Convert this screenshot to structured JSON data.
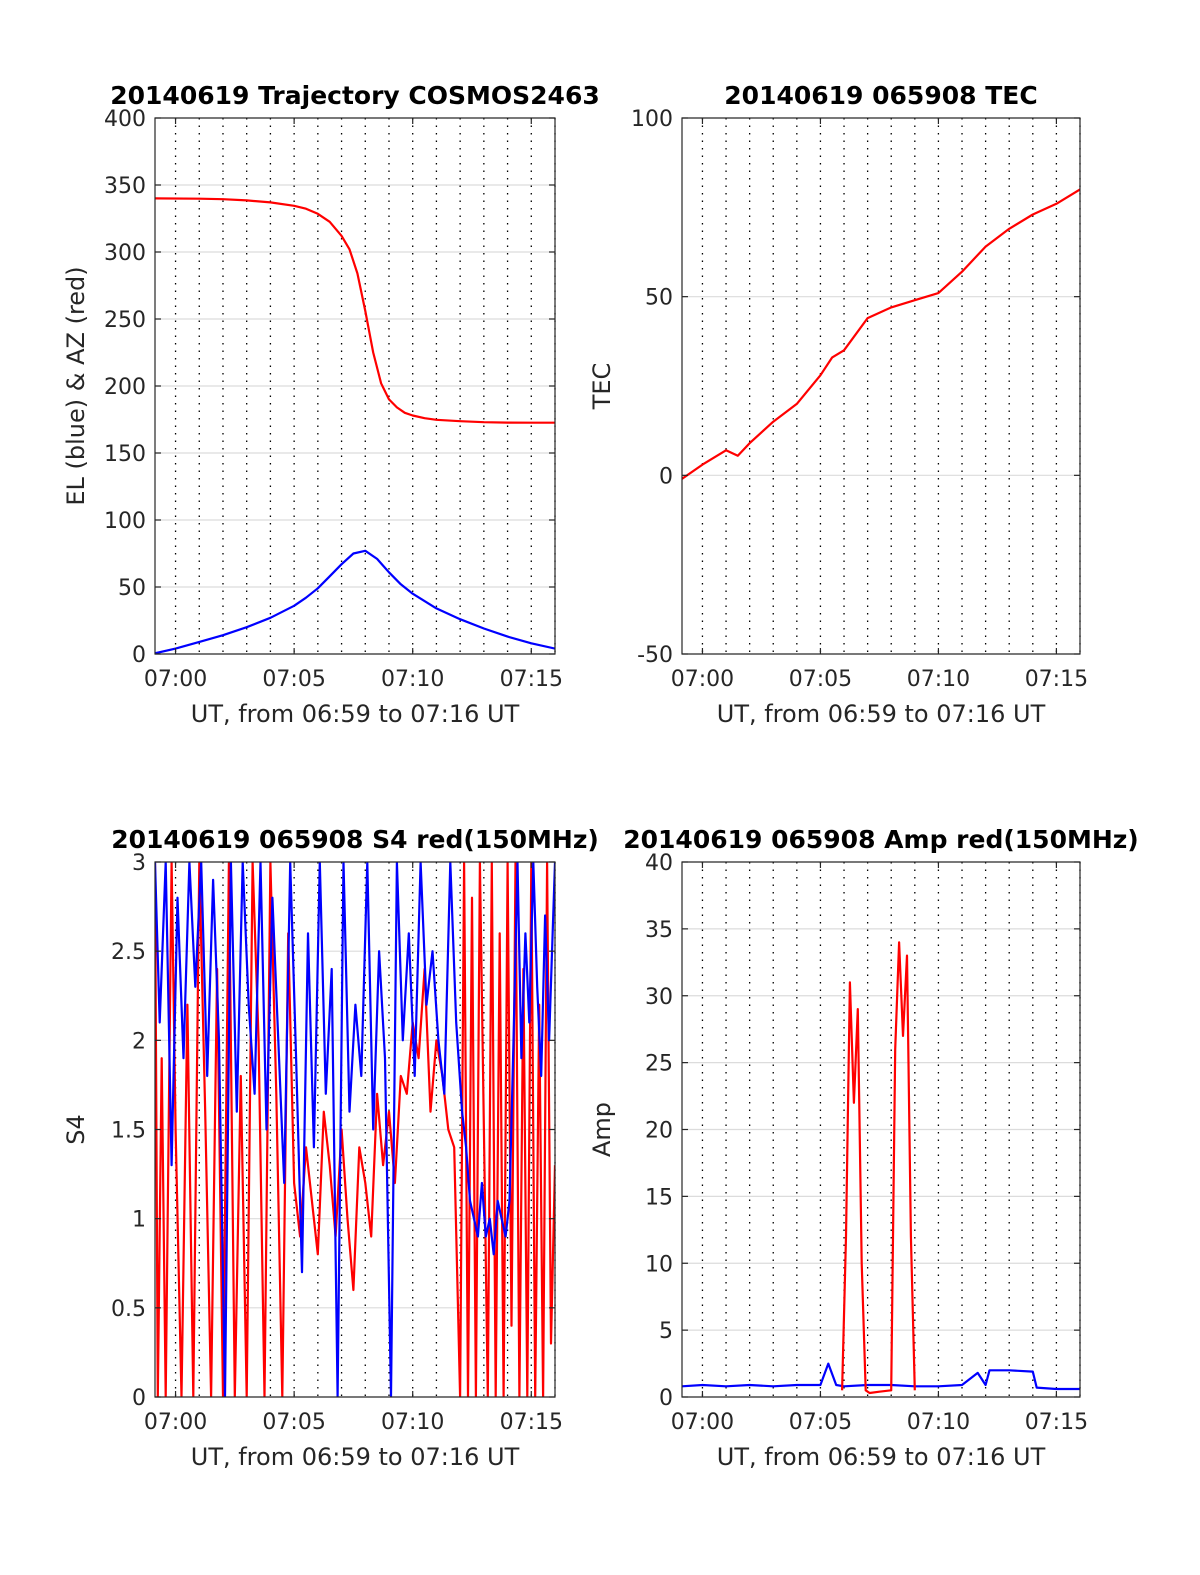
{
  "figure": {
    "colors": {
      "red": "#ff0000",
      "blue": "#0000ff",
      "grid_major": "#dcdcdc",
      "grid_minor": "#000000",
      "axis": "#262626"
    }
  },
  "chart_data": [
    {
      "id": "trajectory",
      "type": "line",
      "title": "20140619 Trajectory COSMOS2463",
      "xlabel": "UT, from 06:59 to 07:16 UT",
      "ylabel": "EL (blue) & AZ (red)",
      "xlim": [
        "06:59:08",
        "07:16:00"
      ],
      "ylim": [
        0,
        400
      ],
      "xticks": [
        "07:00",
        "07:05",
        "07:10",
        "07:15"
      ],
      "yticks": [
        "0",
        "50",
        "100",
        "150",
        "200",
        "250",
        "300",
        "350",
        "400"
      ],
      "grid": true,
      "series": [
        {
          "color": "#ff0000",
          "x": [
            "06:59:08",
            "07:01:00",
            "07:02:00",
            "07:03:00",
            "07:04:00",
            "07:05:00",
            "07:05:30",
            "07:06:00",
            "07:06:30",
            "07:07:00",
            "07:07:20",
            "07:07:40",
            "07:08:00",
            "07:08:20",
            "07:08:40",
            "07:09:00",
            "07:09:20",
            "07:09:40",
            "07:10:00",
            "07:10:30",
            "07:11:00",
            "07:12:00",
            "07:13:00",
            "07:14:00",
            "07:15:00",
            "07:16:00"
          ],
          "y": [
            340,
            339.8,
            339.4,
            338.5,
            337,
            334.5,
            332.3,
            328.5,
            322.5,
            312,
            302,
            284,
            256,
            225,
            202,
            190,
            184,
            180,
            178,
            176,
            174.8,
            173.7,
            173,
            172.7,
            172.6,
            172.6
          ]
        },
        {
          "color": "#0000ff",
          "x": [
            "06:59:08",
            "07:00:00",
            "07:01:00",
            "07:02:00",
            "07:03:00",
            "07:04:00",
            "07:05:00",
            "07:05:30",
            "07:06:00",
            "07:06:30",
            "07:07:00",
            "07:07:30",
            "07:08:00",
            "07:08:30",
            "07:09:00",
            "07:09:30",
            "07:10:00",
            "07:11:00",
            "07:12:00",
            "07:13:00",
            "07:14:00",
            "07:15:00",
            "07:16:00"
          ],
          "y": [
            0.5,
            4,
            9,
            14,
            20,
            27,
            36,
            42,
            49,
            58,
            67,
            75,
            77,
            71,
            61,
            52,
            45,
            34,
            26,
            19,
            13,
            8,
            4
          ]
        }
      ]
    },
    {
      "id": "tec",
      "type": "line",
      "title": "20140619 065908 TEC",
      "xlabel": "UT, from 06:59 to 07:16 UT",
      "ylabel": "TEC",
      "xlim": [
        "06:59:08",
        "07:16:00"
      ],
      "ylim": [
        -50,
        100
      ],
      "xticks": [
        "07:00",
        "07:05",
        "07:10",
        "07:15"
      ],
      "yticks": [
        "-50",
        "0",
        "50",
        "100"
      ],
      "grid": true,
      "series": [
        {
          "color": "#ff0000",
          "x": [
            "06:59:08",
            "07:00:00",
            "07:01:00",
            "07:01:30",
            "07:02:00",
            "07:03:00",
            "07:04:00",
            "07:05:00",
            "07:05:30",
            "07:06:00",
            "07:07:00",
            "07:08:00",
            "07:09:00",
            "07:10:00",
            "07:11:00",
            "07:12:00",
            "07:13:00",
            "07:14:00",
            "07:15:00",
            "07:16:00"
          ],
          "y": [
            -1,
            3,
            7,
            5.5,
            9,
            15,
            20,
            28,
            33,
            35,
            44,
            47,
            49,
            51,
            57,
            64,
            69,
            73,
            76,
            80
          ]
        }
      ]
    },
    {
      "id": "s4",
      "type": "line",
      "title": "20140619 065908 S4 red(150MHz)",
      "xlabel": "UT, from 06:59 to 07:16 UT",
      "ylabel": "S4",
      "xlim": [
        "06:59:08",
        "07:16:00"
      ],
      "ylim": [
        0,
        3
      ],
      "xticks": [
        "07:00",
        "07:05",
        "07:10",
        "07:15"
      ],
      "yticks": [
        "0",
        "0.5",
        "1",
        "1.5",
        "2",
        "2.5",
        "3"
      ],
      "grid": true,
      "series": [
        {
          "color": "#ff0000",
          "x": [
            "06:59:08",
            "06:59:15",
            "06:59:25",
            "06:59:35",
            "06:59:50",
            "07:00:00",
            "07:00:15",
            "07:00:30",
            "07:00:45",
            "07:01:00",
            "07:01:15",
            "07:01:30",
            "07:01:45",
            "07:02:00",
            "07:02:15",
            "07:02:30",
            "07:02:45",
            "07:03:00",
            "07:03:15",
            "07:03:30",
            "07:03:45",
            "07:04:00",
            "07:04:15",
            "07:04:30",
            "07:04:45",
            "07:05:00",
            "07:05:15",
            "07:05:30",
            "07:05:45",
            "07:06:00",
            "07:06:15",
            "07:06:30",
            "07:06:45",
            "07:07:00",
            "07:07:15",
            "07:07:30",
            "07:07:45",
            "07:08:00",
            "07:08:15",
            "07:08:30",
            "07:08:45",
            "07:09:00",
            "07:09:15",
            "07:09:30",
            "07:09:45",
            "07:10:00",
            "07:10:15",
            "07:10:30",
            "07:10:45",
            "07:11:00",
            "07:11:15",
            "07:11:30",
            "07:11:45",
            "07:12:00",
            "07:12:10",
            "07:12:20",
            "07:12:30",
            "07:12:40",
            "07:12:50",
            "07:13:00",
            "07:13:10",
            "07:13:20",
            "07:13:30",
            "07:13:40",
            "07:13:50",
            "07:14:00",
            "07:14:10",
            "07:14:20",
            "07:14:30",
            "07:14:40",
            "07:14:50",
            "07:15:00",
            "07:15:10",
            "07:15:20",
            "07:15:30",
            "07:15:40",
            "07:15:50",
            "07:16:00"
          ],
          "y": [
            3,
            0,
            1.9,
            0,
            3,
            1.5,
            0,
            2.2,
            0,
            3,
            1.6,
            0,
            2.4,
            0,
            3,
            0,
            1.8,
            0,
            3,
            2,
            0,
            3,
            1.7,
            0,
            2.6,
            1.2,
            0.9,
            1.4,
            1.1,
            0.8,
            1.6,
            1.3,
            0.9,
            1.5,
            1.0,
            0.6,
            1.4,
            1.2,
            0.9,
            1.7,
            1.3,
            1.6,
            1.2,
            1.8,
            1.7,
            2.1,
            1.9,
            2.4,
            1.6,
            2.0,
            1.8,
            1.5,
            1.4,
            0,
            3,
            0,
            2.8,
            0,
            3,
            1.5,
            0,
            3,
            0,
            2.6,
            0,
            3,
            0.4,
            3,
            0,
            2.4,
            0,
            3,
            0,
            2.2,
            0,
            3,
            0.3,
            1.3
          ]
        },
        {
          "color": "#0000ff",
          "x": [
            "06:59:08",
            "06:59:20",
            "06:59:35",
            "06:59:50",
            "07:00:05",
            "07:00:20",
            "07:00:35",
            "07:00:50",
            "07:01:05",
            "07:01:20",
            "07:01:35",
            "07:01:50",
            "07:02:05",
            "07:02:20",
            "07:02:35",
            "07:02:50",
            "07:03:05",
            "07:03:20",
            "07:03:35",
            "07:03:50",
            "07:04:05",
            "07:04:20",
            "07:04:35",
            "07:04:50",
            "07:05:05",
            "07:05:20",
            "07:05:35",
            "07:05:50",
            "07:06:05",
            "07:06:20",
            "07:06:35",
            "07:06:50",
            "07:07:05",
            "07:07:20",
            "07:07:35",
            "07:07:50",
            "07:08:05",
            "07:08:20",
            "07:08:35",
            "07:08:50",
            "07:09:05",
            "07:09:20",
            "07:09:35",
            "07:09:50",
            "07:10:05",
            "07:10:20",
            "07:10:35",
            "07:10:50",
            "07:11:05",
            "07:11:20",
            "07:11:35",
            "07:11:50",
            "07:12:05",
            "07:12:15",
            "07:12:25",
            "07:12:35",
            "07:12:45",
            "07:12:55",
            "07:13:05",
            "07:13:15",
            "07:13:25",
            "07:13:35",
            "07:13:45",
            "07:13:55",
            "07:14:05",
            "07:14:15",
            "07:14:25",
            "07:14:35",
            "07:14:45",
            "07:14:55",
            "07:15:05",
            "07:15:15",
            "07:15:25",
            "07:15:35",
            "07:15:45",
            "07:16:00"
          ],
          "y": [
            3,
            2.1,
            3,
            1.3,
            2.8,
            1.9,
            3,
            2.3,
            3,
            1.8,
            2.9,
            2.0,
            0,
            3,
            1.6,
            3,
            2.2,
            1.7,
            3,
            1.5,
            2.8,
            2.0,
            1.2,
            3,
            1.9,
            0.7,
            2.6,
            1.4,
            3,
            1.7,
            2.4,
            0,
            3,
            1.6,
            2.2,
            1.8,
            3,
            1.5,
            2.5,
            1.9,
            0,
            3,
            2.0,
            2.6,
            1.8,
            3,
            2.2,
            2.5,
            2.0,
            1.7,
            3,
            2.1,
            1.6,
            1.4,
            1.1,
            1.0,
            0.9,
            1.2,
            0.9,
            1.0,
            0.8,
            1.1,
            1.0,
            0.9,
            1.1,
            2.0,
            3,
            1.9,
            2.6,
            2.1,
            3,
            2.3,
            1.8,
            2.7,
            2.0,
            3
          ]
        }
      ]
    },
    {
      "id": "amp",
      "type": "line",
      "title": "20140619 065908 Amp red(150MHz)",
      "xlabel": "UT, from 06:59 to 07:16 UT",
      "ylabel": "Amp",
      "xlim": [
        "06:59:08",
        "07:16:00"
      ],
      "ylim": [
        0,
        40
      ],
      "xticks": [
        "07:00",
        "07:05",
        "07:10",
        "07:15"
      ],
      "yticks": [
        "0",
        "5",
        "10",
        "15",
        "20",
        "25",
        "30",
        "35",
        "40"
      ],
      "grid": true,
      "series": [
        {
          "color": "#0000ff",
          "x": [
            "06:59:08",
            "07:00:00",
            "07:01:00",
            "07:02:00",
            "07:03:00",
            "07:04:00",
            "07:05:00",
            "07:05:20",
            "07:05:40",
            "07:06:00",
            "07:07:00",
            "07:08:00",
            "07:09:00",
            "07:10:00",
            "07:11:00",
            "07:11:40",
            "07:12:00",
            "07:12:10",
            "07:13:00",
            "07:14:00",
            "07:14:10",
            "07:15:00",
            "07:16:00"
          ],
          "y": [
            0.8,
            0.9,
            0.8,
            0.9,
            0.8,
            0.9,
            0.9,
            2.5,
            0.9,
            0.8,
            0.9,
            0.9,
            0.8,
            0.8,
            0.9,
            1.8,
            0.9,
            2.0,
            2.0,
            1.9,
            0.7,
            0.6,
            0.6
          ]
        },
        {
          "color": "#ff0000",
          "x": [
            "07:05:55",
            "07:06:05",
            "07:06:15",
            "07:06:25",
            "07:06:35",
            "07:06:45",
            "07:06:55",
            "07:07:05",
            "07:07:30",
            "07:08:00",
            "07:08:10",
            "07:08:20",
            "07:08:30",
            "07:08:40",
            "07:08:50",
            "07:09:00"
          ],
          "y": [
            0.5,
            12,
            31,
            22,
            29,
            10,
            0.5,
            0.3,
            0.4,
            0.5,
            26,
            34,
            27,
            33,
            12,
            0.5
          ]
        }
      ]
    }
  ]
}
